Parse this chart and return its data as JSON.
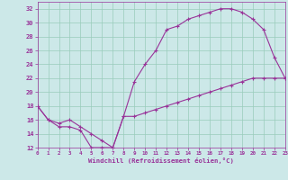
{
  "xlabel": "Windchill (Refroidissement éolien,°C)",
  "background_color": "#cce8e8",
  "line_color": "#993399",
  "grid_color": "#99ccbb",
  "xlim": [
    0,
    23
  ],
  "ylim": [
    12,
    33
  ],
  "xticks": [
    0,
    1,
    2,
    3,
    4,
    5,
    6,
    7,
    8,
    9,
    10,
    11,
    12,
    13,
    14,
    15,
    16,
    17,
    18,
    19,
    20,
    21,
    22,
    23
  ],
  "yticks": [
    12,
    14,
    16,
    18,
    20,
    22,
    24,
    26,
    28,
    30,
    32
  ],
  "line1_x": [
    0,
    1,
    2,
    3,
    4,
    5,
    6,
    7,
    8,
    9,
    10,
    11,
    12,
    13,
    14,
    15,
    16,
    17,
    18,
    19,
    20,
    21,
    22,
    23
  ],
  "line1_y": [
    18,
    16,
    15,
    15,
    14.5,
    12,
    12,
    12,
    16.5,
    21.5,
    24,
    26,
    29,
    29.5,
    30.5,
    31,
    31.5,
    32,
    32,
    31.5,
    30.5,
    29,
    25,
    22
  ],
  "line2_x": [
    0,
    1,
    2,
    3,
    4,
    5,
    6,
    7,
    8,
    9,
    10,
    11,
    12,
    13,
    14,
    15,
    16,
    17,
    18,
    19,
    20,
    21,
    22,
    23
  ],
  "line2_y": [
    18,
    16,
    15.5,
    16,
    15,
    14,
    13,
    12,
    16.5,
    16.5,
    17,
    17.5,
    18,
    18.5,
    19,
    19.5,
    20,
    20.5,
    21,
    21.5,
    22,
    22,
    22,
    22
  ]
}
